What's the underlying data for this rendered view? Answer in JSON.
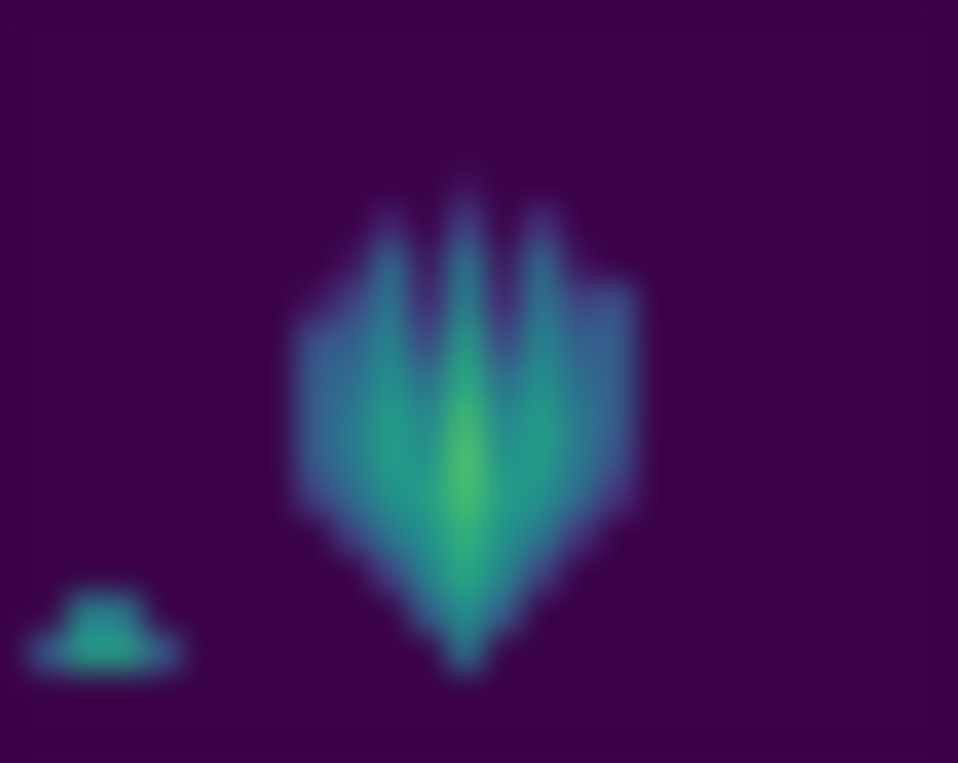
{
  "chart_data": {
    "type": "heatmap",
    "tick_labels": false,
    "color_range": [
      0,
      1
    ],
    "cells": [
      [
        0,
        0,
        0,
        0,
        0,
        0,
        0,
        0,
        0,
        0,
        0,
        0,
        0,
        0,
        0,
        0,
        0,
        0,
        0,
        0,
        0,
        0,
        0,
        0
      ],
      [
        0,
        0,
        0,
        0,
        0,
        0,
        0,
        0,
        0,
        0,
        0,
        0,
        0,
        0,
        0,
        0,
        0,
        0,
        0,
        0,
        0,
        0,
        0,
        0
      ],
      [
        0,
        0,
        0,
        0,
        0,
        0,
        0,
        0,
        0,
        0,
        0,
        0,
        0,
        0,
        0,
        0,
        0,
        0,
        0,
        0,
        0,
        0,
        0,
        0
      ],
      [
        0,
        0,
        0,
        0,
        0,
        0,
        0,
        0,
        0,
        0,
        0,
        0,
        0,
        0,
        0,
        0,
        0,
        0,
        0,
        0,
        0,
        0,
        0,
        0
      ],
      [
        0,
        0,
        0,
        0,
        0,
        0,
        0,
        0,
        0,
        0,
        0,
        0.05,
        0,
        0,
        0,
        0,
        0,
        0,
        0,
        0,
        0,
        0,
        0,
        0
      ],
      [
        0,
        0,
        0,
        0,
        0,
        0,
        0,
        0,
        0,
        0.1,
        0,
        0.2,
        0,
        0.15,
        0,
        0,
        0,
        0,
        0,
        0,
        0,
        0,
        0,
        0
      ],
      [
        0,
        0,
        0,
        0,
        0,
        0,
        0,
        0,
        0.05,
        0.35,
        0.05,
        0.4,
        0.05,
        0.35,
        0.05,
        0,
        0,
        0,
        0,
        0,
        0,
        0,
        0,
        0
      ],
      [
        0,
        0,
        0,
        0,
        0,
        0,
        0,
        0.05,
        0.2,
        0.4,
        0.1,
        0.45,
        0.1,
        0.4,
        0.2,
        0.25,
        0,
        0,
        0,
        0,
        0,
        0,
        0,
        0
      ],
      [
        0,
        0,
        0,
        0,
        0,
        0,
        0,
        0.25,
        0.3,
        0.45,
        0.2,
        0.55,
        0.2,
        0.45,
        0.3,
        0.3,
        0,
        0,
        0,
        0,
        0,
        0,
        0,
        0
      ],
      [
        0,
        0,
        0,
        0,
        0,
        0,
        0,
        0.3,
        0.35,
        0.5,
        0.35,
        0.62,
        0.35,
        0.5,
        0.35,
        0.3,
        0,
        0,
        0,
        0,
        0,
        0,
        0,
        0
      ],
      [
        0,
        0,
        0,
        0,
        0,
        0,
        0,
        0.3,
        0.4,
        0.55,
        0.45,
        0.68,
        0.45,
        0.55,
        0.4,
        0.3,
        0,
        0,
        0,
        0,
        0,
        0,
        0,
        0
      ],
      [
        0,
        0,
        0,
        0,
        0,
        0,
        0,
        0.3,
        0.4,
        0.55,
        0.5,
        0.72,
        0.5,
        0.55,
        0.4,
        0.25,
        0,
        0,
        0,
        0,
        0,
        0,
        0,
        0
      ],
      [
        0,
        0,
        0,
        0,
        0,
        0,
        0,
        0.2,
        0.35,
        0.5,
        0.55,
        0.7,
        0.55,
        0.5,
        0.35,
        0.15,
        0,
        0,
        0,
        0,
        0,
        0,
        0,
        0
      ],
      [
        0,
        0,
        0,
        0,
        0,
        0,
        0,
        0,
        0.2,
        0.4,
        0.5,
        0.65,
        0.5,
        0.4,
        0.15,
        0,
        0,
        0,
        0,
        0,
        0,
        0,
        0,
        0
      ],
      [
        0,
        0,
        0,
        0,
        0,
        0,
        0,
        0,
        0,
        0.2,
        0.45,
        0.6,
        0.45,
        0.2,
        0,
        0,
        0,
        0,
        0,
        0,
        0,
        0,
        0,
        0
      ],
      [
        0,
        0.45,
        0.4,
        0,
        0,
        0,
        0,
        0,
        0,
        0,
        0.3,
        0.5,
        0.3,
        0,
        0,
        0,
        0,
        0,
        0,
        0,
        0,
        0,
        0,
        0
      ],
      [
        0.3,
        0.55,
        0.55,
        0.3,
        0,
        0,
        0,
        0,
        0,
        0,
        0,
        0.4,
        0,
        0,
        0,
        0,
        0,
        0,
        0,
        0,
        0,
        0,
        0,
        0
      ],
      [
        0,
        0,
        0,
        0,
        0,
        0,
        0,
        0,
        0,
        0,
        0,
        0,
        0,
        0,
        0,
        0,
        0,
        0,
        0,
        0,
        0,
        0,
        0,
        0
      ],
      [
        0,
        0,
        0,
        0,
        0,
        0,
        0,
        0,
        0,
        0,
        0,
        0,
        0,
        0,
        0,
        0,
        0,
        0,
        0,
        0,
        0,
        0,
        0,
        0
      ]
    ]
  }
}
